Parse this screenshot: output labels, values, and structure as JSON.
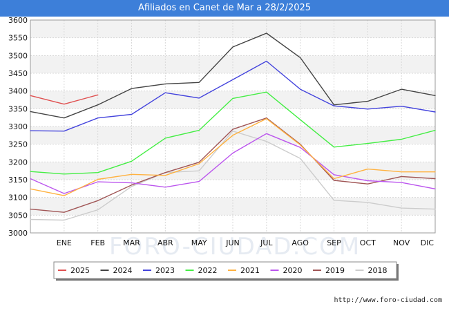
{
  "title": "Afiliados en Canet de Mar a 28/2/2025",
  "source": "http://www.foro-ciudad.com",
  "watermark": "FORO-CIUDAD.COM",
  "chart_data": {
    "type": "line",
    "title": "Afiliados en Canet de Mar a 28/2/2025",
    "xlabel": "",
    "ylabel": "",
    "categories": [
      "",
      "ENE",
      "FEB",
      "MAR",
      "ABR",
      "MAY",
      "JUN",
      "JUL",
      "AGO",
      "SEP",
      "OCT",
      "NOV",
      "DIC"
    ],
    "ylim": [
      3000,
      3600
    ],
    "yticks": [
      3000,
      3050,
      3100,
      3150,
      3200,
      3250,
      3300,
      3350,
      3400,
      3450,
      3500,
      3550,
      3600
    ],
    "grid": true,
    "legend_position": "bottom",
    "series": [
      {
        "name": "2025",
        "color": "#e05050",
        "values": [
          3387,
          3363,
          3389,
          null,
          null,
          null,
          null,
          null,
          null,
          null,
          null,
          null,
          null
        ]
      },
      {
        "name": "2024",
        "color": "#444444",
        "values": [
          3342,
          3324,
          3361,
          3407,
          3420,
          3424,
          3524,
          3563,
          3494,
          3361,
          3371,
          3405,
          3387
        ]
      },
      {
        "name": "2023",
        "color": "#4444dd",
        "values": [
          3288,
          3287,
          3324,
          3334,
          3395,
          3380,
          3432,
          3484,
          3405,
          3358,
          3349,
          3357,
          3341
        ]
      },
      {
        "name": "2022",
        "color": "#44ee44",
        "values": [
          3173,
          3166,
          3170,
          3202,
          3267,
          3289,
          3379,
          3397,
          3319,
          3242,
          3252,
          3264,
          3289
        ]
      },
      {
        "name": "2021",
        "color": "#ffb240",
        "values": [
          3124,
          3105,
          3151,
          3165,
          3162,
          3195,
          3275,
          3322,
          3248,
          3153,
          3180,
          3172,
          3172
        ]
      },
      {
        "name": "2020",
        "color": "#bb55ee",
        "values": [
          3153,
          3111,
          3144,
          3141,
          3129,
          3145,
          3225,
          3280,
          3241,
          3164,
          3147,
          3142,
          3124
        ]
      },
      {
        "name": "2019",
        "color": "#a05555",
        "values": [
          3067,
          3058,
          3091,
          3135,
          3170,
          3199,
          3292,
          3324,
          3250,
          3148,
          3138,
          3159,
          3153
        ]
      },
      {
        "name": "2018",
        "color": "#cccccc",
        "values": [
          3038,
          3036,
          3065,
          3131,
          3170,
          3175,
          3287,
          3258,
          3210,
          3092,
          3086,
          3070,
          3067
        ]
      }
    ]
  }
}
